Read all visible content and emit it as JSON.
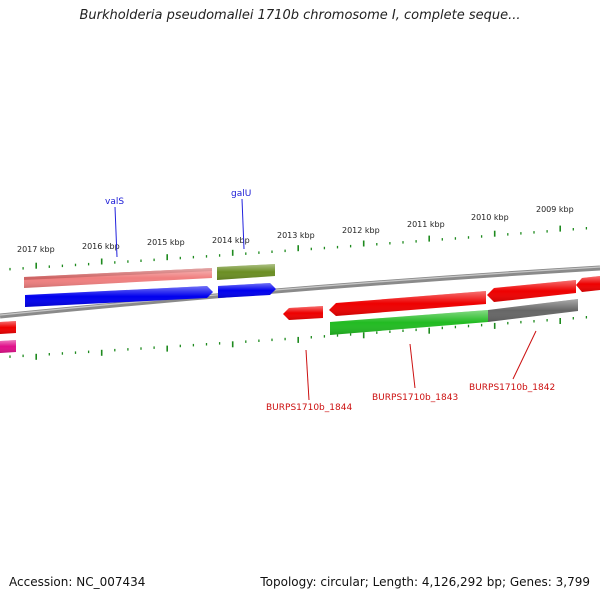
{
  "title": "Burkholderia pseudomallei 1710b chromosome I, complete seque...",
  "footer": {
    "accession": "Accession: NC_007434",
    "stats": "Topology: circular; Length: 4,126,292 bp; Genes: 3,799"
  },
  "scale_labels": [
    "2017 kbp",
    "2016 kbp",
    "2015 kbp",
    "2014 kbp",
    "2013 kbp",
    "2012 kbp",
    "2011 kbp",
    "2010 kbp",
    "2009 kbp"
  ],
  "gene_labels": {
    "outer": [
      "valS",
      "galU"
    ],
    "inner": [
      "BURPS1710b_1844",
      "BURPS1710b_1843",
      "BURPS1710b_1842"
    ]
  },
  "colors": {
    "tick": "#1e8a1e",
    "backbone": "#7a7a7a",
    "gene_red": "#ee0000",
    "gene_blue": "#0000ee",
    "gene_pink": "#f08080",
    "gene_olive": "#6b8e23",
    "gene_green": "#22bb22",
    "gene_gray": "#666666",
    "gene_magenta": "#e0108a",
    "label_blue": "#1a1ad6",
    "label_red": "#cc1010"
  }
}
